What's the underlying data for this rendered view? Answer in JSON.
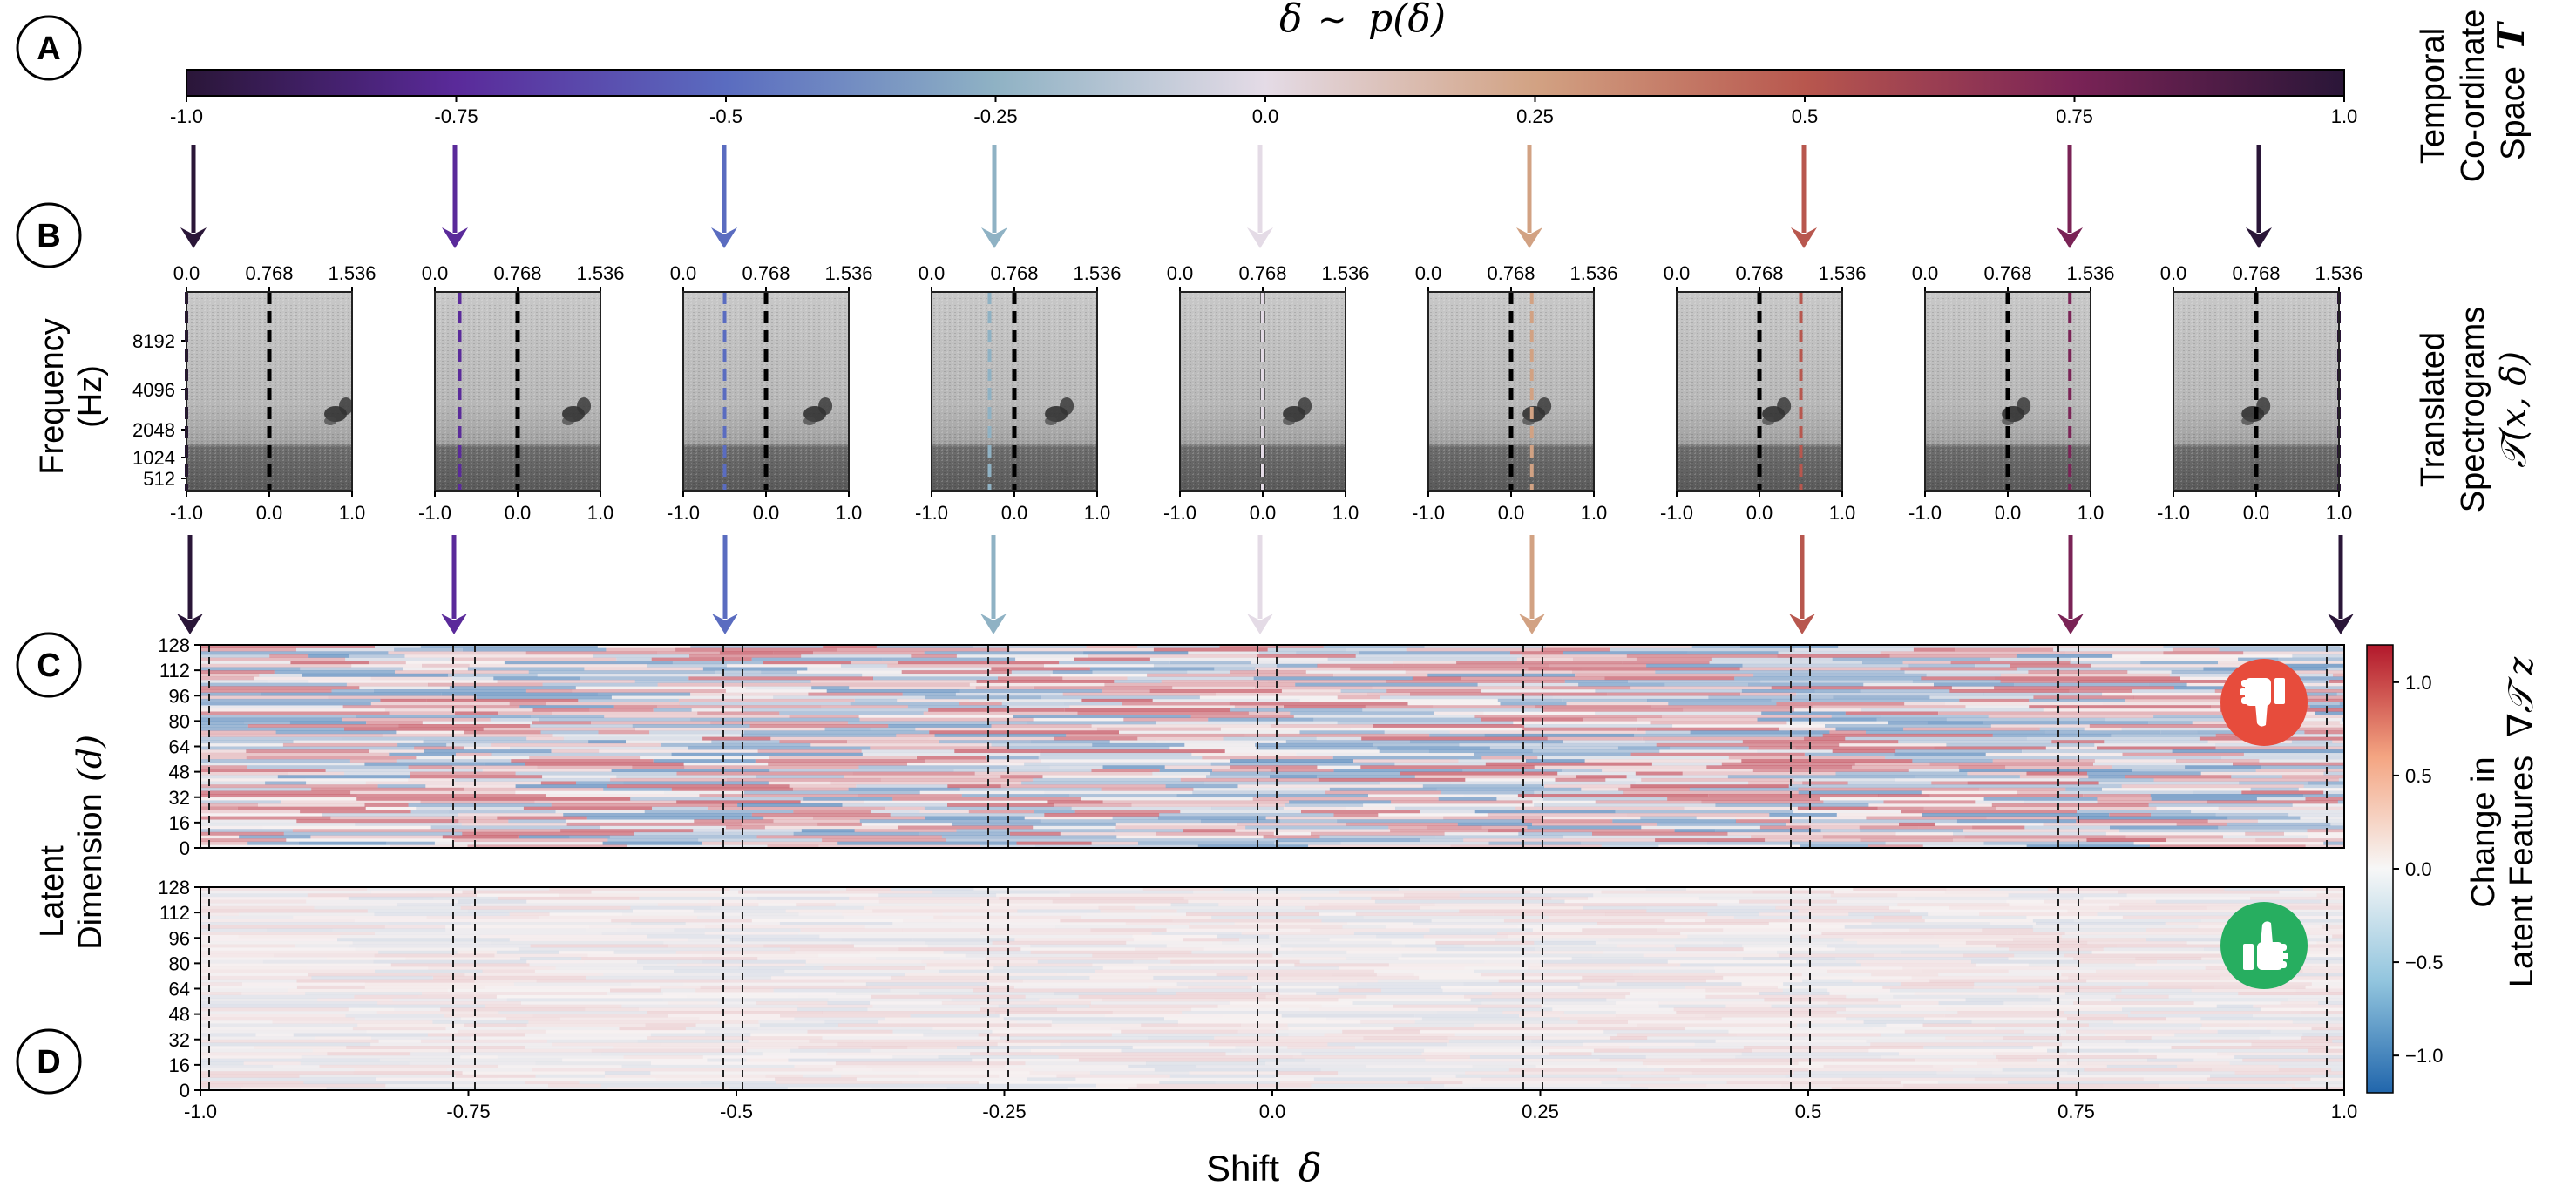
{
  "panel_labels": [
    "A",
    "B",
    "C",
    "D"
  ],
  "colorbar_top": {
    "title_delta": "δ",
    "title_sim": "∼",
    "title_p": "p(δ)",
    "ticks": [
      "-1.0",
      "-0.75",
      "-0.5",
      "-0.25",
      "0.0",
      "0.25",
      "0.5",
      "0.75",
      "1.0"
    ],
    "tick_values": [
      -1.0,
      -0.75,
      -0.5,
      -0.25,
      0.0,
      0.25,
      0.5,
      0.75,
      1.0
    ],
    "stops": [
      "#2a1638",
      "#5a2a9a",
      "#5a6cc0",
      "#8fb2c4",
      "#e4dbe6",
      "#d2a283",
      "#b8574e",
      "#7a2356",
      "#2a1638"
    ]
  },
  "right_labels": {
    "temporal_line1": "Temporal",
    "temporal_line2": "Co-ordinate",
    "temporal_line3": "Space",
    "temporal_symbol": "T",
    "spectro_line1": "Translated",
    "spectro_line2": "Spectrograms",
    "spectro_symbol": "𝒯(x, δ)",
    "change_line1": "Change in",
    "change_line2": "Latent Features",
    "change_symbol": "∇𝒯 z"
  },
  "spectrograms": {
    "ylabel_line1": "Frequency",
    "ylabel_line2": "(Hz)",
    "y_ticks": [
      "8192",
      "4096",
      "2048",
      "1024",
      "512"
    ],
    "top_ticks": [
      "0.0",
      "0.768",
      "1.536"
    ],
    "bottom_ticks": [
      "-1.0",
      "0.0",
      "1.0"
    ],
    "shifts": [
      -1.0,
      -0.7,
      -0.5,
      -0.3,
      0.0,
      0.25,
      0.5,
      0.75,
      1.0
    ],
    "colors": [
      "#2a1638",
      "#5a2a9a",
      "#5a6cc0",
      "#8fb2c4",
      "#e4dbe6",
      "#d2a283",
      "#b8574e",
      "#7a2356",
      "#2a1638"
    ]
  },
  "heatmap_c": {
    "ylabel_line1": "Latent",
    "ylabel_line2": "Dimension",
    "ylabel_var": "(d)",
    "y_ticks": [
      "128",
      "112",
      "96",
      "80",
      "64",
      "48",
      "32",
      "16",
      "0"
    ],
    "y_tick_values": [
      128,
      112,
      96,
      80,
      64,
      48,
      32,
      16,
      0
    ],
    "icon": "thumbs-down-icon",
    "icon_color": "#e74c3c"
  },
  "heatmap_d": {
    "y_ticks": [
      "128",
      "112",
      "96",
      "80",
      "64",
      "48",
      "32",
      "16",
      "0"
    ],
    "y_tick_values": [
      128,
      112,
      96,
      80,
      64,
      48,
      32,
      16,
      0
    ],
    "icon": "thumbs-up-icon",
    "icon_color": "#27ae60"
  },
  "x_axis": {
    "ticks": [
      "-1.0",
      "-0.75",
      "-0.5",
      "-0.25",
      "0.0",
      "0.25",
      "0.5",
      "0.75",
      "1.0"
    ],
    "tick_values": [
      -1.0,
      -0.75,
      -0.5,
      -0.25,
      0.0,
      0.25,
      0.5,
      0.75,
      1.0
    ],
    "label_text": "Shift",
    "label_var": "δ"
  },
  "colorbar_right": {
    "ticks": [
      "1.0",
      "0.5",
      "0.0",
      "−0.5",
      "−1.0"
    ],
    "tick_values": [
      1.0,
      0.5,
      0.0,
      -0.5,
      -1.0
    ],
    "range": [
      -1.2,
      1.2
    ],
    "stops": [
      "#2166ac",
      "#92c5de",
      "#f7f7f7",
      "#f4a582",
      "#b2182b"
    ]
  }
}
